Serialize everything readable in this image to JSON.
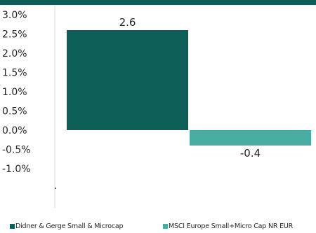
{
  "colors": {
    "header_bar": "#0d5e57",
    "series_1": "#0d5e57",
    "series_2": "#4aada3",
    "axis": "#d9d9d9"
  },
  "chart_data": {
    "type": "bar",
    "categories": [
      "Didner & Gerge Small & Microcap",
      "MSCI Europe Small+Micro Cap NR EUR"
    ],
    "values": [
      2.6,
      -0.4
    ],
    "value_labels": [
      "2.6",
      "-0.4"
    ],
    "title": "",
    "xlabel": "",
    "ylabel": "",
    "ylim": [
      -1.0,
      3.0
    ],
    "yticks": [
      3.0,
      2.5,
      2.0,
      1.5,
      1.0,
      0.5,
      0.0,
      -0.5,
      -1.0
    ],
    "ytick_labels": [
      "3.0%",
      "2.5%",
      "2.0%",
      "1.5%",
      "1.0%",
      "0.5%",
      "0.0%",
      "-0.5%",
      "-1.0%"
    ],
    "grid": false,
    "legend_position": "bottom",
    "stray_mark": "."
  },
  "legend": {
    "items": [
      {
        "label": "Didner & Gerge Small & Microcap"
      },
      {
        "label": "MSCI Europe Small+Micro Cap NR EUR"
      }
    ]
  }
}
